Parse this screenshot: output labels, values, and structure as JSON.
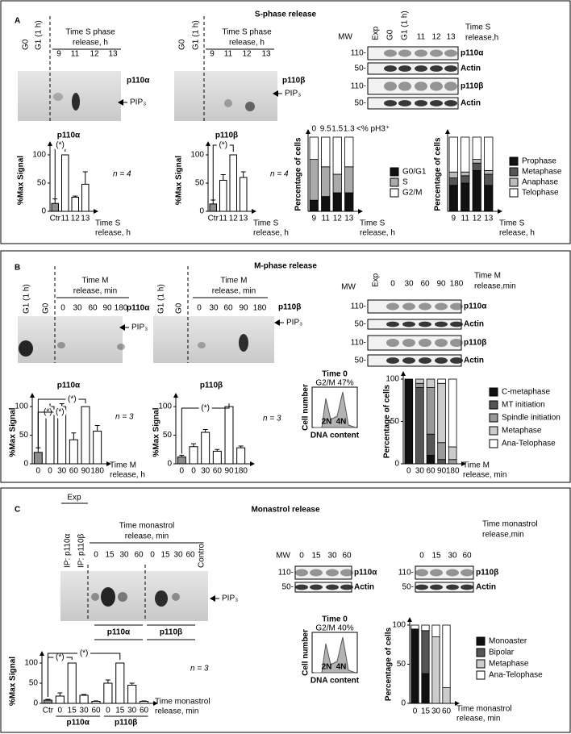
{
  "panels": [
    {
      "letter": "A",
      "title": "S-phase release",
      "blots": [
        {
          "lanes_left": [
            "G0",
            "G1 (1 h)"
          ],
          "header": [
            "Time S phase",
            "release, h"
          ],
          "lanes": [
            "9",
            "11",
            "12",
            "13"
          ],
          "protein": "p110α",
          "product": "PIP₃"
        },
        {
          "lanes_left": [
            "G0",
            "G1 (1 h)"
          ],
          "header": [
            "Time S phase",
            "release, h"
          ],
          "lanes": [
            "9",
            "11",
            "12",
            "13"
          ],
          "protein": "p110β",
          "product": "PIP₃"
        }
      ],
      "westerns": [
        {
          "mw": "MW",
          "lanes": [
            "Exp",
            "G0",
            "G1 (1 h)",
            "11",
            "12",
            "13"
          ],
          "header": [
            "Time S",
            "release,h"
          ],
          "rows": [
            {
              "marker": "110-",
              "label": "p110α"
            },
            {
              "marker": "50-",
              "label": "Actin"
            },
            {
              "marker": "110-",
              "label": "p110β"
            },
            {
              "marker": "50-",
              "label": "Actin"
            }
          ]
        }
      ],
      "charts": [
        {
          "type": "bar",
          "title": "p110α",
          "ylabel": "%Max Signal",
          "categories": [
            "Ctr",
            "11",
            "12",
            "13"
          ],
          "values": [
            14,
            100,
            25,
            48
          ],
          "errors": [
            8,
            0,
            2,
            22
          ],
          "colors": [
            "#8c8c8c",
            "#ffffff",
            "#ffffff",
            "#ffffff"
          ],
          "ylim": [
            0,
            110
          ],
          "yticks": [
            0,
            50,
            100
          ],
          "xlabel": [
            "Time S",
            "release, h"
          ],
          "note": "n = 4",
          "significance": [
            "(*)"
          ]
        },
        {
          "type": "bar",
          "title": "p110β",
          "ylabel": "%Max Signal",
          "categories": [
            "Ctr",
            "11",
            "12",
            "13"
          ],
          "values": [
            13,
            55,
            100,
            60
          ],
          "errors": [
            7,
            10,
            0,
            10
          ],
          "colors": [
            "#8c8c8c",
            "#ffffff",
            "#ffffff",
            "#ffffff"
          ],
          "ylim": [
            0,
            110
          ],
          "yticks": [
            0,
            50,
            100
          ],
          "xlabel": [
            "Time S",
            "release, h"
          ],
          "note": "n = 4",
          "significance": [
            "(*)"
          ]
        },
        {
          "type": "stacked",
          "ylabel": "Percentage of cells",
          "categories": [
            "9",
            "11",
            "12",
            "13"
          ],
          "ylim": [
            0,
            100
          ],
          "xlabel": [
            "Time S",
            "release, h"
          ],
          "top_labels": [
            "0",
            "9.5",
            "1.5",
            "1.3"
          ],
          "top_note": "<% pH3⁺",
          "series": [
            {
              "name": "G0/G1",
              "color": "#111111",
              "values": [
                15,
                20,
                25,
                25
              ]
            },
            {
              "name": "S",
              "color": "#aaaaaa",
              "values": [
                55,
                40,
                25,
                35
              ]
            },
            {
              "name": "G2/M",
              "color": "#ffffff",
              "values": [
                30,
                40,
                50,
                40
              ]
            }
          ]
        },
        {
          "type": "stacked",
          "ylabel": "Percentage of cells",
          "categories": [
            "9",
            "11",
            "12",
            "13"
          ],
          "ylim": [
            0,
            100
          ],
          "xlabel": [
            "Time S",
            "release, h"
          ],
          "series": [
            {
              "name": "Prophase",
              "color": "#111111",
              "values": [
                35,
                38,
                55,
                35
              ]
            },
            {
              "name": "Metaphase",
              "color": "#555555",
              "values": [
                10,
                10,
                10,
                15
              ]
            },
            {
              "name": "Anaphase",
              "color": "#bbbbbb",
              "values": [
                8,
                5,
                5,
                5
              ]
            },
            {
              "name": "Telophase",
              "color": "#ffffff",
              "values": [
                47,
                47,
                30,
                45
              ]
            }
          ]
        }
      ]
    },
    {
      "letter": "B",
      "title": "M-phase release",
      "blots": [
        {
          "lanes_left": [
            "G1 (1 h)",
            "G0"
          ],
          "header": [
            "Time M",
            "release, min"
          ],
          "lanes": [
            "0",
            "30",
            "60",
            "90",
            "180"
          ],
          "protein": "p110α",
          "product": "PIP₃"
        },
        {
          "lanes_left": [
            "G1 (1 h)",
            "G0"
          ],
          "header": [
            "Time M",
            "release, min"
          ],
          "lanes": [
            "0",
            "30",
            "60",
            "90",
            "180"
          ],
          "protein": "p110β",
          "product": "PIP₃"
        }
      ],
      "westerns": [
        {
          "mw": "MW",
          "lanes": [
            "Exp",
            "0",
            "30",
            "60",
            "90",
            "180"
          ],
          "header": [
            "Time M",
            "release,min"
          ],
          "rows": [
            {
              "marker": "110-",
              "label": "p110α"
            },
            {
              "marker": "50-",
              "label": "Actin"
            },
            {
              "marker": "110-",
              "label": "p110β"
            },
            {
              "marker": "50-",
              "label": "Actin"
            }
          ]
        }
      ],
      "histograms": [
        {
          "title": "Time 0",
          "subtitle": "G2/M 47%",
          "ylabel": "Cell number",
          "xlabel": "DNA content",
          "peaks": [
            "2N",
            "4N"
          ]
        }
      ],
      "charts": [
        {
          "type": "bar",
          "title": "p110α",
          "ylabel": "%Max Signal",
          "categories": [
            "0",
            "0",
            "30",
            "60",
            "90",
            "180"
          ],
          "values": [
            20,
            100,
            100,
            42,
            100,
            57
          ],
          "errors": [
            8,
            0,
            5,
            12,
            0,
            10
          ],
          "colors": [
            "#8c8c8c",
            "#ffffff",
            "#ffffff",
            "#ffffff",
            "#ffffff",
            "#ffffff"
          ],
          "ylim": [
            0,
            110
          ],
          "yticks": [
            0,
            50,
            100
          ],
          "xlabel": [
            "Time M",
            "release, h"
          ],
          "note": "n = 3",
          "significance": [
            "(*)",
            "(*)",
            "(*)"
          ]
        },
        {
          "type": "bar",
          "title": "p110β",
          "ylabel": "%Max Signal",
          "categories": [
            "0",
            "0",
            "30",
            "60",
            "90",
            "180"
          ],
          "values": [
            12,
            30,
            55,
            22,
            100,
            28
          ],
          "errors": [
            3,
            5,
            5,
            3,
            0,
            3
          ],
          "colors": [
            "#8c8c8c",
            "#ffffff",
            "#ffffff",
            "#ffffff",
            "#ffffff",
            "#ffffff"
          ],
          "ylim": [
            0,
            110
          ],
          "yticks": [
            0,
            50,
            100
          ],
          "note": "n = 3",
          "significance": [
            "(*)"
          ]
        },
        {
          "type": "stacked",
          "ylabel": "Percentage of cells",
          "categories": [
            "0",
            "30",
            "60",
            "90",
            "180"
          ],
          "ylim": [
            0,
            100
          ],
          "yticks": [
            0,
            50,
            100
          ],
          "xlabel": [
            "Time M",
            "release, min"
          ],
          "series": [
            {
              "name": "C-metaphase",
              "color": "#111111",
              "values": [
                100,
                0,
                10,
                0,
                0
              ]
            },
            {
              "name": "MT initiation",
              "color": "#555555",
              "values": [
                0,
                90,
                25,
                5,
                0
              ]
            },
            {
              "name": "Spindle initiation",
              "color": "#999999",
              "values": [
                0,
                5,
                55,
                20,
                5
              ]
            },
            {
              "name": "Metaphase",
              "color": "#cccccc",
              "values": [
                0,
                5,
                10,
                70,
                15
              ]
            },
            {
              "name": "Ana-Telophase",
              "color": "#ffffff",
              "values": [
                0,
                0,
                0,
                5,
                80
              ]
            }
          ]
        }
      ]
    },
    {
      "letter": "C",
      "title": "Monastrol release",
      "blots": [
        {
          "exp": "Exp",
          "lanes_left": [
            "IP: p110α",
            "IP: p110β"
          ],
          "header": [
            "Time monastrol",
            "release, min"
          ],
          "lanes": [
            "0",
            "15",
            "30",
            "60",
            "0",
            "15",
            "30",
            "60"
          ],
          "control": "Control",
          "product": "PIP₃",
          "groups": [
            "p110α",
            "p110β"
          ]
        }
      ],
      "westerns": [
        {
          "mw": "MW",
          "lanes": [
            "0",
            "15",
            "30",
            "60"
          ],
          "rows": [
            {
              "marker": "110-",
              "label": "p110α"
            },
            {
              "marker": "50-",
              "label": "Actin"
            }
          ]
        },
        {
          "lanes": [
            "0",
            "15",
            "30",
            "60"
          ],
          "header": [
            "Time monastrol",
            "release,min"
          ],
          "rows": [
            {
              "marker": "110-",
              "label": "p110β"
            },
            {
              "marker": "50-",
              "label": "Actin"
            }
          ]
        }
      ],
      "histograms": [
        {
          "title": "Time 0",
          "subtitle": "G2/M 40%",
          "ylabel": "Cell number",
          "xlabel": "DNA content",
          "peaks": [
            "2N",
            "4N"
          ]
        }
      ],
      "charts": [
        {
          "type": "bar",
          "ylabel": "%Max Signal",
          "categories": [
            "Ctr",
            "0",
            "15",
            "30",
            "60",
            "0",
            "15",
            "30",
            "60"
          ],
          "groups": [
            "p110α",
            "p110β"
          ],
          "values": [
            8,
            18,
            100,
            20,
            5,
            50,
            100,
            45,
            5
          ],
          "errors": [
            2,
            8,
            0,
            2,
            1,
            8,
            0,
            5,
            1
          ],
          "colors": [
            "#8c8c8c",
            "#ffffff",
            "#ffffff",
            "#ffffff",
            "#ffffff",
            "#ffffff",
            "#ffffff",
            "#ffffff",
            "#ffffff"
          ],
          "ylim": [
            0,
            110
          ],
          "yticks": [
            0,
            50,
            100
          ],
          "xlabel": [
            "Time monastrol",
            "release, min"
          ],
          "note": "n = 3",
          "significance": [
            "(*)",
            "(*)"
          ]
        },
        {
          "type": "stacked",
          "ylabel": "Percentage of cells",
          "categories": [
            "0",
            "15",
            "30",
            "60"
          ],
          "ylim": [
            0,
            100
          ],
          "yticks": [
            0,
            50,
            100
          ],
          "xlabel": [
            "Time monastrol",
            "release, min"
          ],
          "series": [
            {
              "name": "Monoaster",
              "color": "#111111",
              "values": [
                95,
                38,
                0,
                0
              ]
            },
            {
              "name": "Bipolar",
              "color": "#555555",
              "values": [
                0,
                55,
                0,
                0
              ]
            },
            {
              "name": "Metaphase",
              "color": "#cccccc",
              "values": [
                0,
                0,
                85,
                20
              ]
            },
            {
              "name": "Ana-Telophase",
              "color": "#ffffff",
              "values": [
                5,
                7,
                15,
                80
              ]
            }
          ]
        }
      ]
    }
  ]
}
